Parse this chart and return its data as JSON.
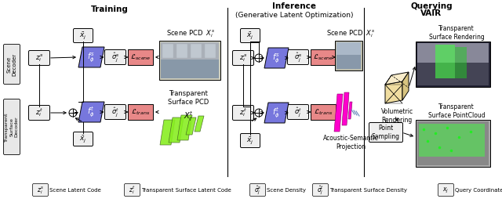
{
  "bg_color": "#ffffff",
  "blue_color": "#7777dd",
  "pink_color": "#e88888",
  "gray_color": "#cccccc",
  "title_training": "Training",
  "title_inference": "Inference",
  "title_inference2": "(Generative Latent Optimization)",
  "title_querying": "Querying",
  "title_querying2": "VAIR",
  "scene_decoder_label": "Scene\nDecoder",
  "trans_decoder_label": "Transparent\nSurface\nDecoder",
  "vol_render_label": "Volumetric\nRendering",
  "trans_render_label": "Transparent\nSurface Rendering",
  "trans_pcd_label": "Transparent\nSurface PointCloud",
  "point_sampling_label": "Point\nSampling",
  "scene_pcd_label_train": "Scene PCD",
  "scene_pcd_label_inf": "Scene PCD",
  "trans_pcd_bottom_label": "Transparent\nSurface PCD",
  "acoustic_label": "Acoustic-Semantic\nProjection"
}
